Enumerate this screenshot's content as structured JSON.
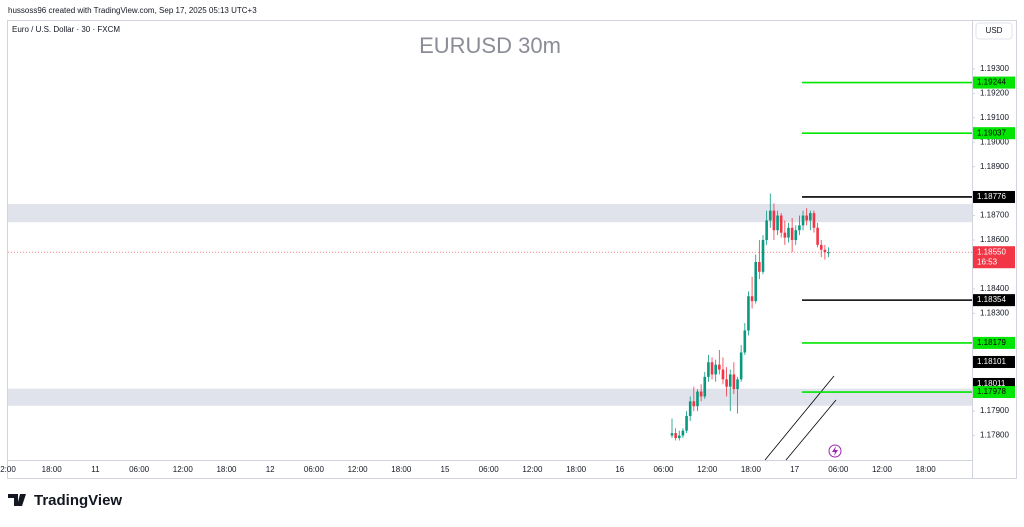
{
  "header": {
    "credit": "hussoss96 created with TradingView.com, Sep 17, 2025 05:13 UTC+3",
    "symbol": "Euro / U.S. Dollar · 30 · FXCM",
    "watermark": "EURUSD 30m",
    "currency": "USD",
    "brand": "TradingView"
  },
  "chart_data": {
    "type": "candlestick",
    "up_color": "#089981",
    "down_color": "#f23645",
    "ylim": [
      1.177,
      1.195
    ],
    "yticks": [
      {
        "value": 1.193,
        "label": "1.19300"
      },
      {
        "value": 1.192,
        "label": "1.19200"
      },
      {
        "value": 1.191,
        "label": "1.19100"
      },
      {
        "value": 1.19,
        "label": "1.19000"
      },
      {
        "value": 1.189,
        "label": "1.18900"
      },
      {
        "value": 1.187,
        "label": "1.18700"
      },
      {
        "value": 1.186,
        "label": "1.18600"
      },
      {
        "value": 1.184,
        "label": "1.18400"
      },
      {
        "value": 1.183,
        "label": "1.18300"
      },
      {
        "value": 1.179,
        "label": "1.17900"
      },
      {
        "value": 1.178,
        "label": "1.17800"
      }
    ],
    "time_labels": [
      "2:00",
      "18:00",
      "11",
      "06:00",
      "12:00",
      "18:00",
      "12",
      "06:00",
      "12:00",
      "18:00",
      "15",
      "06:00",
      "12:00",
      "18:00",
      "16",
      "06:00",
      "12:00",
      "18:00",
      "17",
      "06:00",
      "12:00",
      "18:00"
    ],
    "open": [
      1.178,
      1.1781,
      1.1779,
      1.178,
      1.1782,
      1.1788,
      1.1794,
      1.1792,
      1.1798,
      1.1796,
      1.1804,
      1.181,
      1.1805,
      1.1809,
      1.1807,
      1.1803,
      1.18,
      1.1805,
      1.1799,
      1.1803,
      1.1814,
      1.1823,
      1.1837,
      1.1835,
      1.1851,
      1.1847,
      1.186,
      1.1868,
      1.1872,
      1.1864,
      1.187,
      1.1863,
      1.1861,
      1.1865,
      1.186,
      1.1864,
      1.1866,
      1.187,
      1.1868,
      1.1871,
      1.1865,
      1.1858,
      1.1856,
      1.1855
    ],
    "high": [
      1.1787,
      1.1783,
      1.1782,
      1.1783,
      1.179,
      1.1796,
      1.18,
      1.1799,
      1.1801,
      1.1806,
      1.1813,
      1.1812,
      1.1811,
      1.1815,
      1.1812,
      1.1808,
      1.1807,
      1.181,
      1.1804,
      1.1817,
      1.1826,
      1.1839,
      1.1845,
      1.1854,
      1.186,
      1.1862,
      1.1872,
      1.1879,
      1.1875,
      1.1872,
      1.1871,
      1.1868,
      1.1867,
      1.1869,
      1.1866,
      1.187,
      1.1872,
      1.1873,
      1.1872,
      1.1872,
      1.1867,
      1.186,
      1.1858,
      1.1857
    ],
    "low": [
      1.1779,
      1.1778,
      1.1778,
      1.1779,
      1.1781,
      1.1786,
      1.179,
      1.179,
      1.1794,
      1.1795,
      1.1802,
      1.1803,
      1.1802,
      1.1805,
      1.1801,
      1.1796,
      1.179,
      1.1797,
      1.1789,
      1.1802,
      1.1813,
      1.1821,
      1.1832,
      1.1834,
      1.1844,
      1.1846,
      1.1858,
      1.1865,
      1.186,
      1.1862,
      1.1861,
      1.1858,
      1.1859,
      1.1855,
      1.1858,
      1.1862,
      1.1864,
      1.1866,
      1.1864,
      1.1863,
      1.1857,
      1.1853,
      1.1852,
      1.1853
    ],
    "close": [
      1.1781,
      1.1779,
      1.178,
      1.1782,
      1.1788,
      1.1794,
      1.1792,
      1.1798,
      1.1796,
      1.1804,
      1.181,
      1.1805,
      1.1809,
      1.1807,
      1.1803,
      1.18,
      1.1805,
      1.1799,
      1.1803,
      1.1814,
      1.1823,
      1.1837,
      1.1835,
      1.1851,
      1.1847,
      1.186,
      1.1868,
      1.1872,
      1.1864,
      1.187,
      1.1863,
      1.1861,
      1.1865,
      1.186,
      1.1864,
      1.1866,
      1.187,
      1.1868,
      1.1871,
      1.1865,
      1.1858,
      1.1856,
      1.1855,
      1.1855
    ],
    "zones": [
      {
        "top": 1.18747,
        "bottom": 1.18673,
        "color": "#e0e3eb"
      },
      {
        "top": 1.17992,
        "bottom": 1.17922,
        "color": "#e0e3eb"
      }
    ],
    "levels": [
      {
        "price": 1.19244,
        "label": "1.19244",
        "color": "#00e600",
        "line": true
      },
      {
        "price": 1.19037,
        "label": "1.19037",
        "color": "#00e600",
        "line": true
      },
      {
        "price": 1.18776,
        "label": "1.18776",
        "color": "#000000",
        "line": true
      },
      {
        "price": 1.18354,
        "label": "1.18354",
        "color": "#000000",
        "line": true
      },
      {
        "price": 1.18179,
        "label": "1.18179",
        "color": "#00e600",
        "line": true
      },
      {
        "price": 1.18101,
        "label": "1.18101",
        "color": "#000000",
        "line": false
      },
      {
        "price": 1.18011,
        "label": "1.18011",
        "color": "#000000",
        "line": false
      },
      {
        "price": 1.17978,
        "label": "1.17978",
        "color": "#00e600",
        "line": true
      }
    ],
    "last_price": {
      "price": 1.1855,
      "label": "1.18550",
      "countdown": "16:53",
      "color": "#f23645"
    }
  }
}
